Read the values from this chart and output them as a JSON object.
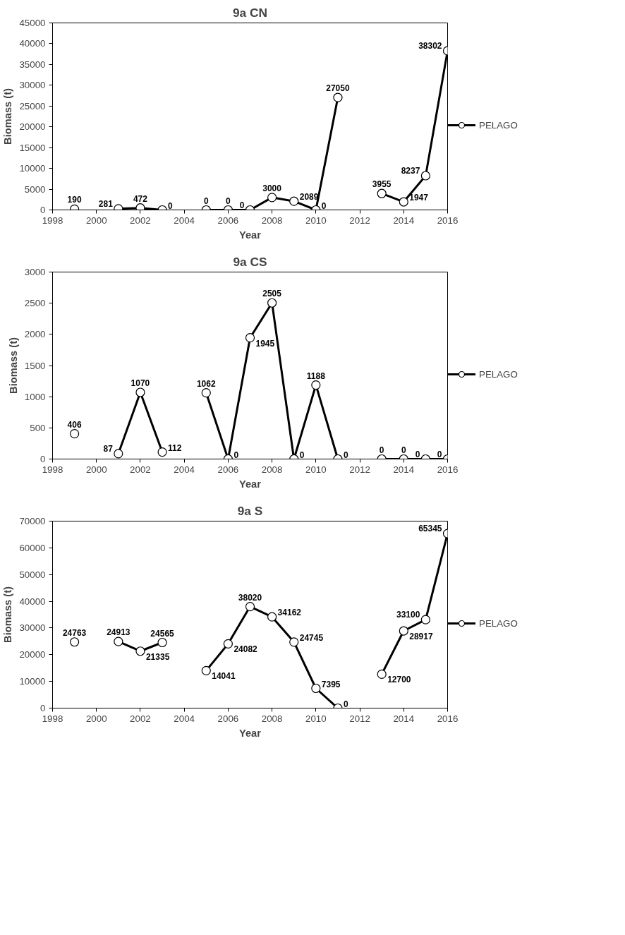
{
  "chart_data": [
    {
      "type": "line",
      "title": "9a CN",
      "xlabel": "Year",
      "ylabel": "Biomass (t)",
      "x": [
        1999,
        2000,
        2001,
        2002,
        2003,
        2004,
        2005,
        2006,
        2007,
        2008,
        2009,
        2010,
        2011,
        2012,
        2013,
        2014,
        2015,
        2016
      ],
      "series": [
        {
          "name": "PELAGO",
          "color": "#000000",
          "values": [
            190,
            null,
            281,
            472,
            0,
            null,
            0,
            0,
            0,
            3000,
            2089,
            0,
            27050,
            null,
            3955,
            1947,
            8237,
            38302
          ]
        }
      ],
      "xlim": [
        1998,
        2016
      ],
      "xticks": [
        1998,
        2000,
        2002,
        2004,
        2006,
        2008,
        2010,
        2012,
        2014,
        2016
      ],
      "ylim": [
        0,
        45000
      ],
      "yticks": [
        0,
        5000,
        10000,
        15000,
        20000,
        25000,
        30000,
        35000,
        40000,
        45000
      ],
      "data_labels": true,
      "legend": "right",
      "marker": "circle",
      "line_style": "solid",
      "grid": false
    },
    {
      "type": "line",
      "title": "9a CS",
      "xlabel": "Year",
      "ylabel": "Biomass (t)",
      "x": [
        1999,
        2000,
        2001,
        2002,
        2003,
        2004,
        2005,
        2006,
        2007,
        2008,
        2009,
        2010,
        2011,
        2012,
        2013,
        2014,
        2015,
        2016
      ],
      "series": [
        {
          "name": "PELAGO",
          "color": "#000000",
          "values": [
            406,
            null,
            87,
            1070,
            112,
            null,
            1062,
            0,
            1945,
            2505,
            0,
            1188,
            0,
            null,
            0,
            0,
            0,
            0
          ]
        }
      ],
      "xlim": [
        1998,
        2016
      ],
      "xticks": [
        1998,
        2000,
        2002,
        2004,
        2006,
        2008,
        2010,
        2012,
        2014,
        2016
      ],
      "ylim": [
        0,
        3000
      ],
      "yticks": [
        0,
        500,
        1000,
        1500,
        2000,
        2500,
        3000
      ],
      "data_labels": true,
      "legend": "right",
      "marker": "circle",
      "line_style": "solid",
      "grid": false
    },
    {
      "type": "line",
      "title": "9a S",
      "xlabel": "Year",
      "ylabel": "Biomass (t)",
      "x": [
        1999,
        2000,
        2001,
        2002,
        2003,
        2004,
        2005,
        2006,
        2007,
        2008,
        2009,
        2010,
        2011,
        2012,
        2013,
        2014,
        2015,
        2016
      ],
      "series": [
        {
          "name": "PELAGO",
          "color": "#000000",
          "values": [
            24763,
            null,
            24913,
            21335,
            24565,
            null,
            14041,
            24082,
            38020,
            34162,
            24745,
            7395,
            0,
            null,
            12700,
            28917,
            33100,
            65345
          ]
        }
      ],
      "xlim": [
        1998,
        2016
      ],
      "xticks": [
        1998,
        2000,
        2002,
        2004,
        2006,
        2008,
        2010,
        2012,
        2014,
        2016
      ],
      "ylim": [
        0,
        70000
      ],
      "yticks": [
        0,
        10000,
        20000,
        30000,
        40000,
        50000,
        60000,
        70000
      ],
      "data_labels": true,
      "legend": "right",
      "marker": "circle",
      "line_style": "solid",
      "grid": false
    }
  ]
}
